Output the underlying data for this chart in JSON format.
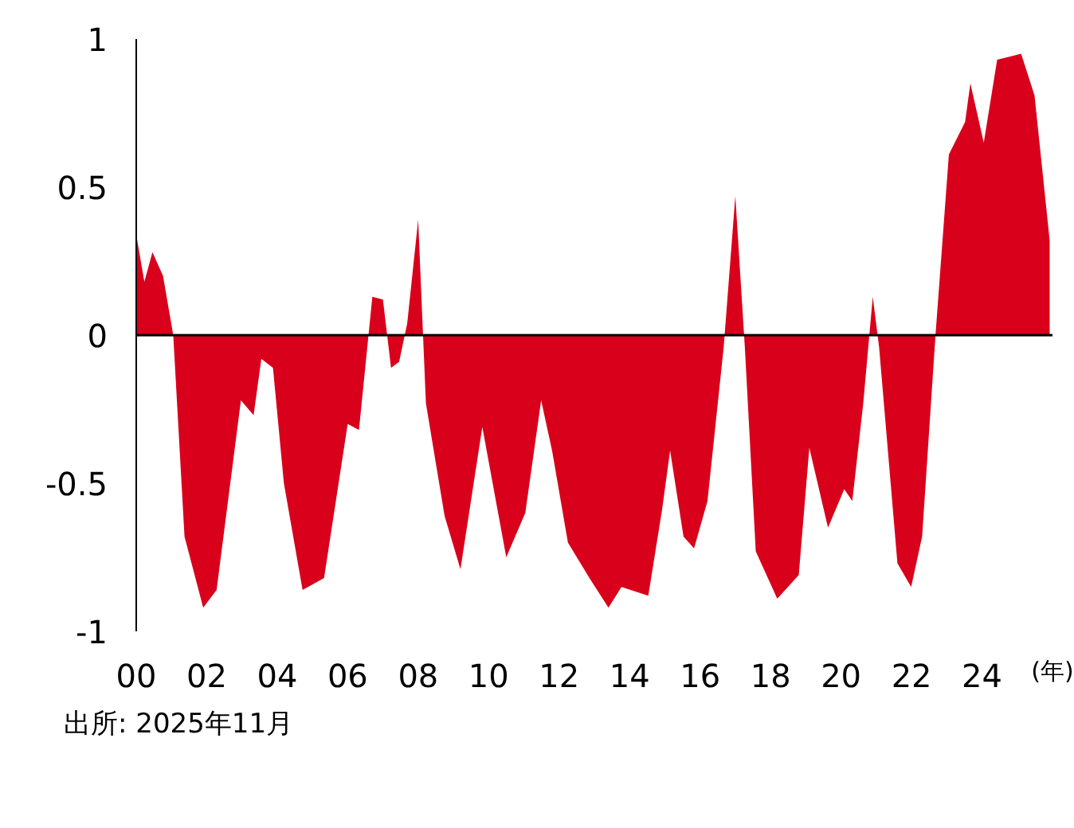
{
  "chart_data": {
    "type": "area",
    "x": [
      2000.0,
      2000.23,
      2000.46,
      2000.76,
      2001.05,
      2001.37,
      2001.9,
      2002.28,
      2002.97,
      2003.33,
      2003.55,
      2003.88,
      2004.19,
      2004.72,
      2005.33,
      2006.0,
      2006.32,
      2006.7,
      2007.0,
      2007.23,
      2007.46,
      2007.69,
      2008.0,
      2008.22,
      2008.75,
      2009.2,
      2009.82,
      2010.5,
      2011.04,
      2011.49,
      2011.8,
      2012.25,
      2012.86,
      2013.4,
      2013.77,
      2014.53,
      2014.92,
      2015.15,
      2015.53,
      2015.83,
      2016.21,
      2016.67,
      2017.0,
      2017.27,
      2017.58,
      2018.19,
      2018.8,
      2019.1,
      2019.63,
      2020.09,
      2020.32,
      2020.63,
      2020.9,
      2021.08,
      2021.6,
      2021.99,
      2022.3,
      2022.68,
      2023.06,
      2023.52,
      2023.67,
      2024.05,
      2024.43,
      2025.11,
      2025.49,
      2025.92
    ],
    "series": [
      {
        "color": "#d9001b",
        "values": [
          0.34,
          0.18,
          0.28,
          0.2,
          0.0,
          -0.68,
          -0.92,
          -0.86,
          -0.22,
          -0.27,
          -0.08,
          -0.11,
          -0.5,
          -0.86,
          -0.82,
          -0.3,
          -0.32,
          0.13,
          0.12,
          -0.11,
          -0.09,
          0.04,
          0.39,
          -0.23,
          -0.61,
          -0.79,
          -0.31,
          -0.75,
          -0.6,
          -0.22,
          -0.39,
          -0.7,
          -0.82,
          -0.92,
          -0.85,
          -0.88,
          -0.59,
          -0.39,
          -0.68,
          -0.72,
          -0.56,
          -0.04,
          0.47,
          -0.04,
          -0.73,
          -0.89,
          -0.81,
          -0.38,
          -0.65,
          -0.52,
          -0.56,
          -0.23,
          0.13,
          -0.04,
          -0.77,
          -0.85,
          -0.68,
          0.0,
          0.61,
          0.72,
          0.85,
          0.65,
          0.93,
          0.95,
          0.81,
          0.32
        ]
      }
    ],
    "xlabel": "(年)",
    "xlim": [
      2000,
      2026
    ],
    "xticks": [
      {
        "value": 2000,
        "label": "00"
      },
      {
        "value": 2002,
        "label": "02"
      },
      {
        "value": 2004,
        "label": "04"
      },
      {
        "value": 2006,
        "label": "06"
      },
      {
        "value": 2008,
        "label": "08"
      },
      {
        "value": 2010,
        "label": "10"
      },
      {
        "value": 2012,
        "label": "12"
      },
      {
        "value": 2014,
        "label": "14"
      },
      {
        "value": 2016,
        "label": "16"
      },
      {
        "value": 2018,
        "label": "18"
      },
      {
        "value": 2020,
        "label": "20"
      },
      {
        "value": 2022,
        "label": "22"
      },
      {
        "value": 2024,
        "label": "24"
      }
    ],
    "ylim": [
      -1,
      1
    ],
    "yticks": [
      1,
      0.5,
      0,
      -0.5,
      -1
    ],
    "ref_lines": [
      {
        "axis": "y",
        "value": 0,
        "color": "#000000"
      }
    ],
    "annotations": [
      "出所: 2025年11月"
    ]
  }
}
